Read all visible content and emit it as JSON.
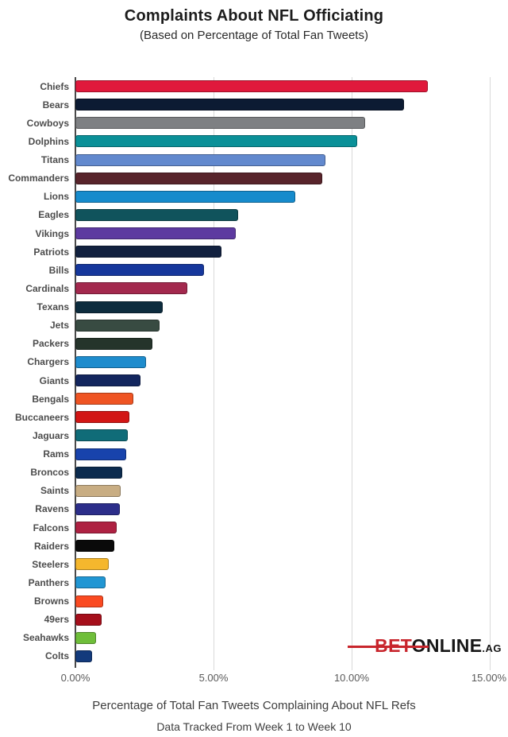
{
  "chart_data": {
    "type": "bar",
    "orientation": "horizontal",
    "title": "Complaints About NFL Officiating",
    "subtitle": "(Based on Percentage of Total Fan Tweets)",
    "xlabel": "Percentage of Total Fan Tweets Complaining About NFL Refs",
    "note": "Data Tracked From Week 1 to Week 10",
    "xlim": [
      0,
      15
    ],
    "x_tick_values": [
      0,
      5,
      10,
      15
    ],
    "x_ticks": [
      "0.00%",
      "5.00%",
      "10.00%",
      "15.00%"
    ],
    "grid": true,
    "legend": "none",
    "categories": [
      "Chiefs",
      "Bears",
      "Cowboys",
      "Dolphins",
      "Titans",
      "Commanders",
      "Lions",
      "Eagles",
      "Vikings",
      "Patriots",
      "Bills",
      "Cardinals",
      "Texans",
      "Jets",
      "Packers",
      "Chargers",
      "Giants",
      "Bengals",
      "Buccaneers",
      "Jaguars",
      "Rams",
      "Broncos",
      "Saints",
      "Ravens",
      "Falcons",
      "Raiders",
      "Steelers",
      "Panthers",
      "Browns",
      "49ers",
      "Seahawks",
      "Colts"
    ],
    "values": [
      12.75,
      11.9,
      10.5,
      10.2,
      9.05,
      8.95,
      7.95,
      5.9,
      5.8,
      5.3,
      4.65,
      4.05,
      3.15,
      3.05,
      2.8,
      2.55,
      2.35,
      2.1,
      1.95,
      1.9,
      1.85,
      1.7,
      1.65,
      1.6,
      1.5,
      1.4,
      1.2,
      1.1,
      1.0,
      0.95,
      0.75,
      0.6
    ],
    "bar_colors": [
      "#E0193C",
      "#0C1B33",
      "#7E8083",
      "#0A9098",
      "#6289CE",
      "#58242B",
      "#168BCC",
      "#10535C",
      "#5D3AA0",
      "#12213F",
      "#16379C",
      "#A3294E",
      "#0D2C3E",
      "#384B42",
      "#25342B",
      "#1E8CCD",
      "#13265E",
      "#EF5423",
      "#D21615",
      "#106C78",
      "#1843AC",
      "#0C2B4E",
      "#C8AD83",
      "#2C2E8A",
      "#AE2142",
      "#0A0A0A",
      "#F5B72D",
      "#2196D3",
      "#FA4A21",
      "#A50F1B",
      "#6FBE3A",
      "#133A7C"
    ],
    "gridline_color": "#d9d9d9",
    "axis_line_color": "#4a4a4a"
  },
  "branding": {
    "bet": "BET",
    "online": "ONLINE",
    "tld": ".AG",
    "bet_color": "#C8252C",
    "text_color": "#161616"
  }
}
